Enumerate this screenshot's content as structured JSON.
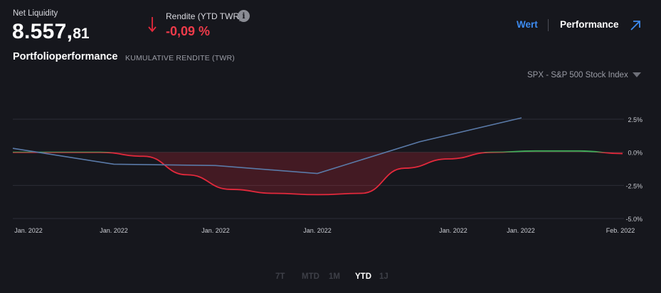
{
  "header": {
    "net_liquidity_label": "Net Liquidity",
    "net_liquidity_int": "8.557,",
    "net_liquidity_dec": "81",
    "rendite_label": "Rendite (YTD TWR)",
    "rendite_value": "-0,09 %",
    "info_glyph": "i",
    "trend_icon": "arrow-down-icon"
  },
  "tabs": {
    "wert": "Wert",
    "performance": "Performance",
    "active": "performance",
    "expand_icon": "expand-arrow-icon"
  },
  "section": {
    "title": "Portfolioperformance",
    "subtitle": "KUMULATIVE RENDITE (TWR)"
  },
  "benchmark": {
    "selected": "SPX - S&P 500 Stock Index",
    "caret_icon": "caret-down-icon"
  },
  "range_buttons": [
    {
      "label": "7T",
      "active": false
    },
    {
      "label": "MTD",
      "active": false
    },
    {
      "label": "1M",
      "active": false
    },
    {
      "label": "YTD",
      "active": true
    },
    {
      "label": "1J",
      "active": false
    }
  ],
  "colors": {
    "positive": "#3fae5a",
    "negative": "#e4293c",
    "benchmark": "#5a7aa8",
    "accent": "#3d8bf0",
    "background": "#16171d"
  },
  "chart_data": {
    "type": "line",
    "title": "",
    "xlabel": "",
    "ylabel": "",
    "x_ticks": [
      "Jan. 2022",
      "Jan. 2022",
      "Jan. 2022",
      "Jan. 2022",
      "Jan. 2022",
      "Jan. 2022",
      "Feb. 2022"
    ],
    "y_ticks": [
      "2.5%",
      "0.0%",
      "-2.5%",
      "-5.0%"
    ],
    "ylim": [
      -5.0,
      2.5
    ],
    "grid": true,
    "legend": "none",
    "series": [
      {
        "x": [
          0,
          1,
          2,
          3,
          4,
          5,
          6,
          7,
          8,
          9,
          10,
          11,
          12,
          13,
          14
        ],
        "y": [
          0.0,
          0.0,
          0.0,
          -0.3,
          -1.7,
          -2.8,
          -3.1,
          -3.2,
          -3.1,
          -1.2,
          -0.5,
          0.0,
          0.1,
          0.1,
          -0.1
        ]
      },
      {
        "x": [
          0,
          2,
          4,
          6,
          8,
          10,
          12
        ],
        "y": [
          0.3,
          -0.9,
          -1.0,
          -1.6,
          0.8,
          2.6,
          2.6
        ]
      }
    ]
  }
}
